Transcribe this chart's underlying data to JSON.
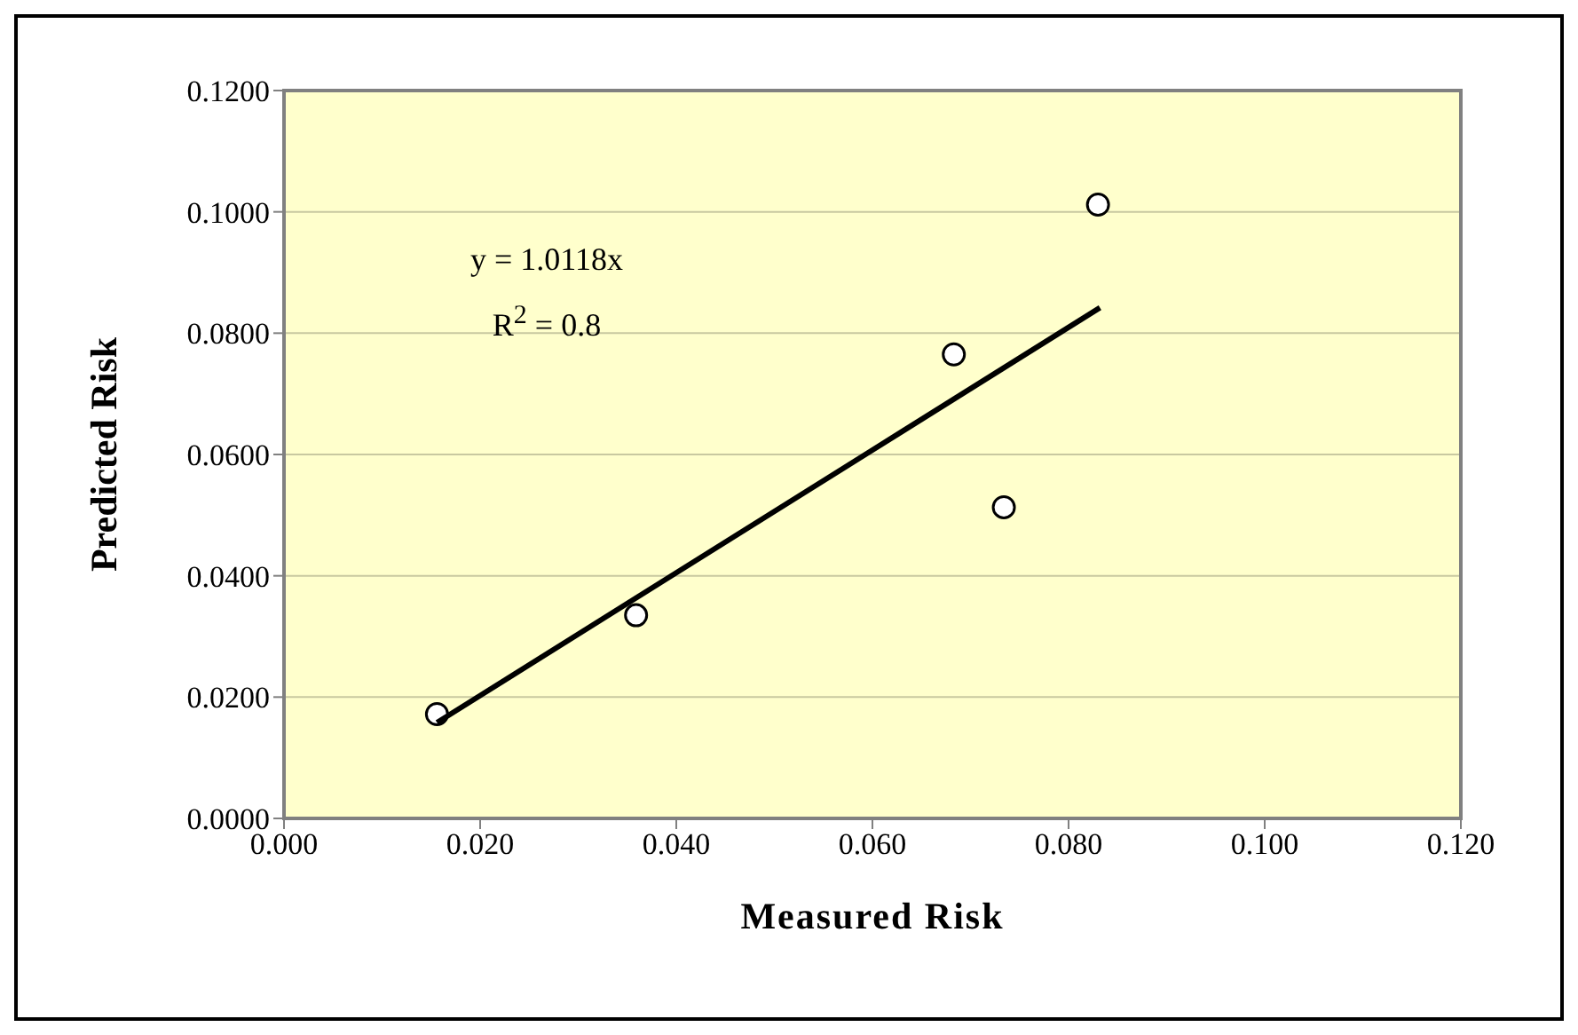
{
  "chart_data": {
    "type": "scatter",
    "xlabel": "Measured Risk",
    "ylabel": "Predicted Risk",
    "x": [
      0.0156,
      0.0359,
      0.0683,
      0.0734,
      0.083
    ],
    "series": [
      {
        "color": "#ffffff",
        "values": [
          0.0172,
          0.0335,
          0.0765,
          0.0513,
          0.1012
        ],
        "marker": "circle"
      },
      {
        "type": "line",
        "color": "#000000",
        "x": [
          0.0156,
          0.0832
        ],
        "values": [
          0.0158,
          0.0842
        ],
        "marker": "none",
        "line_style": "solid"
      }
    ],
    "xlim": [
      0,
      0.12
    ],
    "xticks": [
      {
        "value": 0,
        "label": "0.000"
      },
      {
        "value": 0.02,
        "label": "0.020"
      },
      {
        "value": 0.04,
        "label": "0.040"
      },
      {
        "value": 0.06,
        "label": "0.060"
      },
      {
        "value": 0.08,
        "label": "0.080"
      },
      {
        "value": 0.1,
        "label": "0.100"
      },
      {
        "value": 0.12,
        "label": "0.120"
      }
    ],
    "ylim": [
      0,
      0.12
    ],
    "yticks": [
      {
        "value": 0,
        "label": "0.0000"
      },
      {
        "value": 0.02,
        "label": "0.0200"
      },
      {
        "value": 0.04,
        "label": "0.0400"
      },
      {
        "value": 0.06,
        "label": "0.0600"
      },
      {
        "value": 0.08,
        "label": "0.0800"
      },
      {
        "value": 0.1,
        "label": "0.1000"
      },
      {
        "value": 0.12,
        "label": "0.1200"
      }
    ],
    "grid": "y",
    "legend": false,
    "annotations": [
      "y = 1.0118x",
      "R$^{2}$ = 0.8"
    ]
  }
}
